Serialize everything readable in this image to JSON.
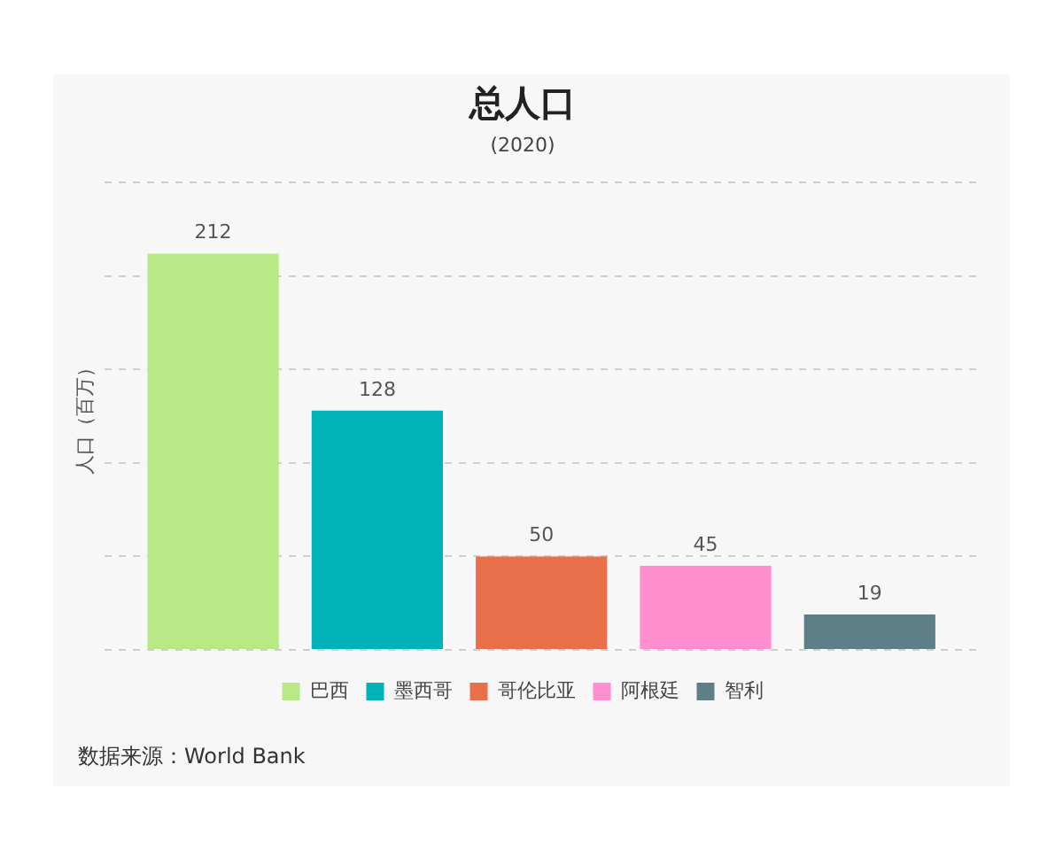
{
  "chart_data": {
    "type": "bar",
    "title": "总人口",
    "subtitle": "(2020)",
    "ylabel": "人口（百万）",
    "categories": [
      null
    ],
    "series": [
      {
        "name": "巴西",
        "color": "#b8e986",
        "values": [
          212
        ]
      },
      {
        "name": "墨西哥",
        "color": "#00b3b8",
        "values": [
          128
        ]
      },
      {
        "name": "哥伦比亚",
        "color": "#e8704a",
        "values": [
          50
        ]
      },
      {
        "name": "阿根廷",
        "color": "#ff8fcf",
        "values": [
          45
        ]
      },
      {
        "name": "智利",
        "color": "#5e7f86",
        "values": [
          19
        ]
      }
    ],
    "grid": "y",
    "legend": "bottom",
    "tick_labels": false,
    "data_labels": true,
    "annotations": [
      "数据来源：World Bank"
    ]
  }
}
